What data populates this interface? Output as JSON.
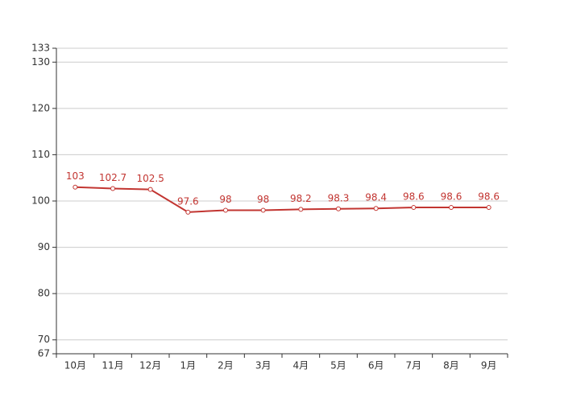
{
  "chart_data": {
    "type": "line",
    "categories": [
      "10月",
      "11月",
      "12月",
      "1月",
      "2月",
      "3月",
      "4月",
      "5月",
      "6月",
      "7月",
      "8月",
      "9月"
    ],
    "series": [
      {
        "color": "#c23531",
        "values": [
          103,
          102.7,
          102.5,
          97.6,
          98,
          98,
          98.2,
          98.3,
          98.4,
          98.6,
          98.6,
          98.6
        ]
      }
    ],
    "ylim": [
      67,
      133
    ],
    "yticks": [
      67,
      70,
      80,
      90,
      100,
      110,
      120,
      130,
      133
    ],
    "grid": true
  }
}
